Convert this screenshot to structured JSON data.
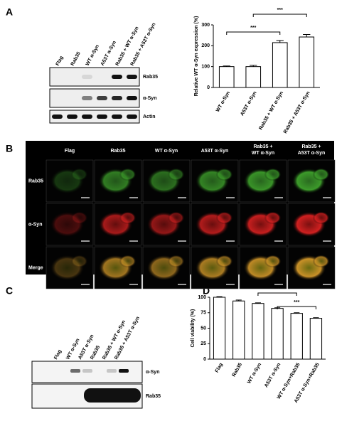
{
  "panel_labels": [
    "A",
    "B",
    "C",
    "D"
  ],
  "blot_a": {
    "lanes": [
      "Flag",
      "Rab35",
      "WT α-Syn",
      "A53T α-Syn",
      "Rab35 + WT α-Syn",
      "Rab35 + A53T α-Syn"
    ],
    "rows": [
      "Rab35",
      "α-Syn",
      "Actin"
    ]
  },
  "imaging": {
    "columns": [
      [
        "Flag"
      ],
      [
        "Rab35"
      ],
      [
        "WT α-Syn"
      ],
      [
        "A53T α-Syn"
      ],
      [
        "Rab35 +",
        "WT α-Syn"
      ],
      [
        "Rab35 +",
        "A53T α-Syn"
      ]
    ],
    "rows": [
      "Rab35",
      "α-Syn",
      "Merge"
    ]
  },
  "blot_c": {
    "lanes": [
      "Flag",
      "WT α-Syn",
      "A53T α-Syn",
      "Rab35",
      "Rab35 + WT α-Syn",
      "Rab35 + A53T α-Syn"
    ],
    "rows": [
      "α-Syn",
      "Rab35"
    ]
  },
  "chart_data": [
    {
      "type": "bar",
      "y_label": "Relative WT α-Syn expression (%)",
      "categories": [
        "WT α-Syn",
        "A53T α-Syn",
        "Rab35 + WT α-Syn",
        "Rab35 + A53T α-Syn"
      ],
      "values": [
        100,
        100,
        215,
        242
      ],
      "errors": [
        3,
        6,
        10,
        12
      ],
      "color": "#ffffff",
      "ylim": [
        0,
        300
      ],
      "yticks": [
        0,
        100,
        200,
        300
      ],
      "annotations": [
        "***",
        "***"
      ]
    },
    {
      "type": "bar",
      "y_label": "Cell viability (%)",
      "categories": [
        "Flag",
        "Rab35",
        "WT α-Syn",
        "A53T α-Syn",
        "WT α-Syn+Rab35",
        "A53T α-Syn+Rab35"
      ],
      "values": [
        100,
        94,
        90,
        82,
        74,
        66
      ],
      "errors": [
        1,
        1.5,
        1,
        1,
        1,
        1
      ],
      "color": "#ffffff",
      "ylim": [
        0,
        100
      ],
      "yticks": [
        0,
        25,
        50,
        75,
        100
      ],
      "annotations": [
        "***",
        "***"
      ]
    }
  ]
}
